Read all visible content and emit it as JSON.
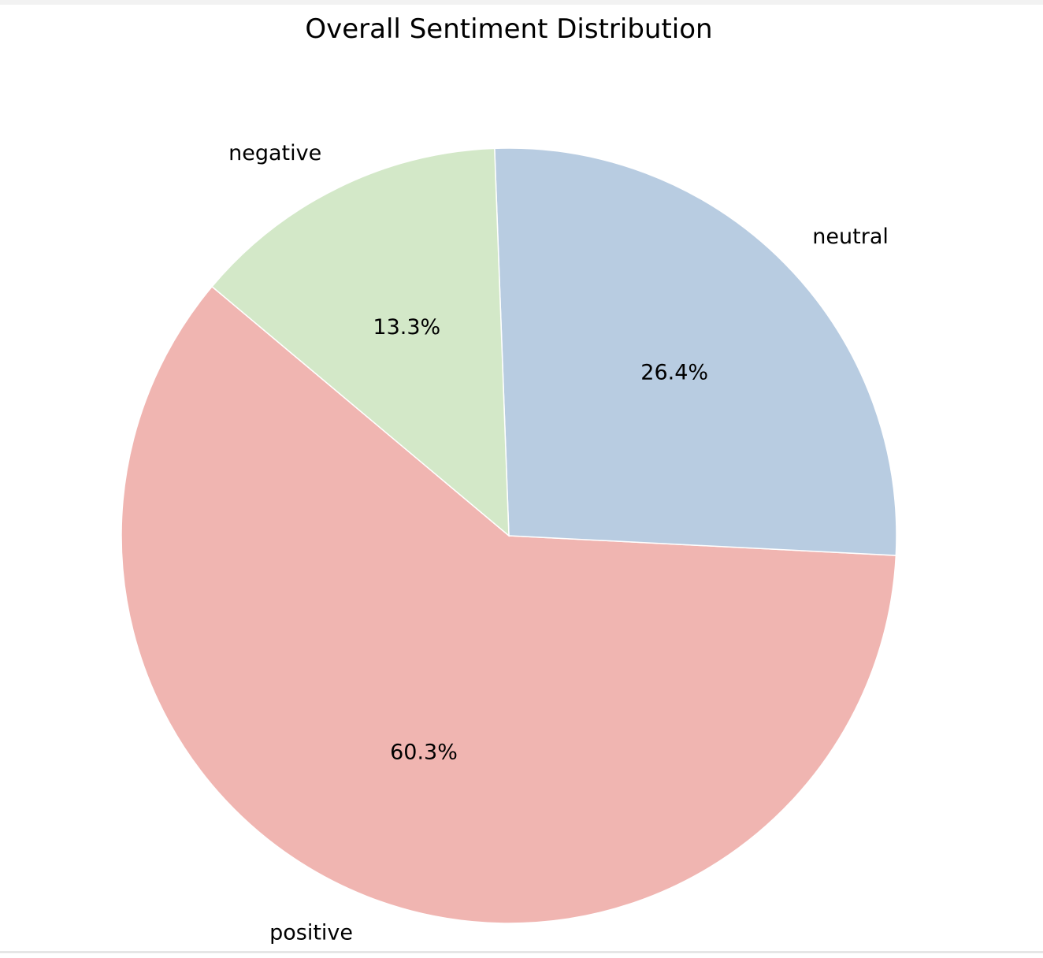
{
  "chart_data": {
    "type": "pie",
    "title": "Overall Sentiment Distribution",
    "categories": [
      "positive",
      "neutral",
      "negative"
    ],
    "values": [
      60.3,
      26.4,
      13.3
    ],
    "percent_labels": [
      "60.3%",
      "26.4%",
      "13.3%"
    ],
    "colors": [
      "#f0b5b1",
      "#b8cce1",
      "#d3e8c8"
    ],
    "slice_edge_color": "#ffffff",
    "start_angle_deg": 140,
    "direction": "counterclockwise",
    "legend": "none"
  }
}
